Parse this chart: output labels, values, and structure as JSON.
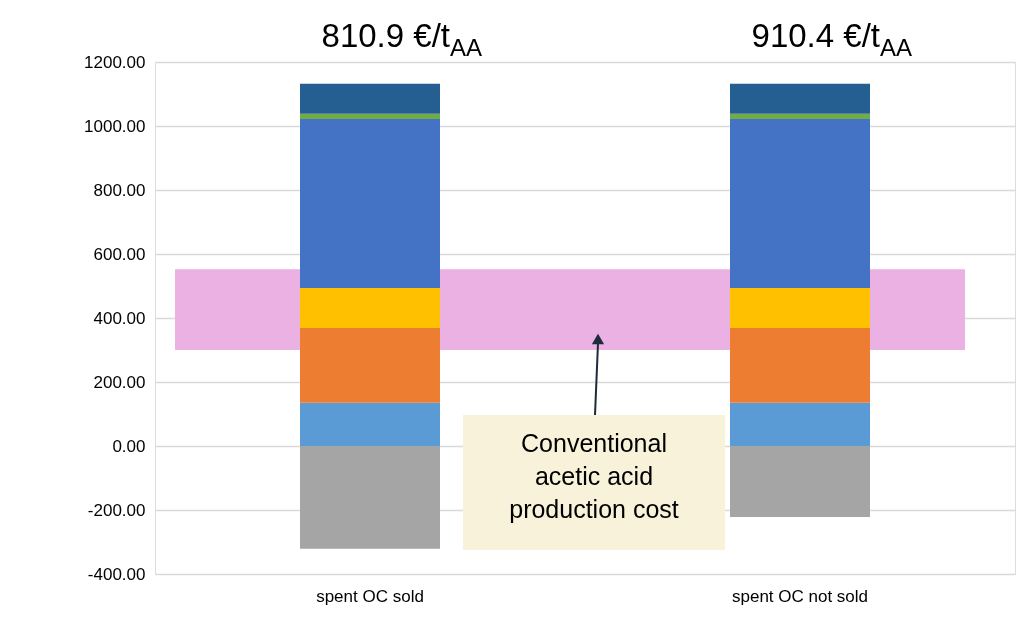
{
  "chart_data": {
    "type": "bar",
    "stacked": true,
    "categories": [
      "spent OC sold",
      "spent OC not sold"
    ],
    "series": [
      {
        "color": "#a5a5a5",
        "values": [
          -321.1,
          -221.6
        ]
      },
      {
        "color": "#5b9bd5",
        "values": [
          135,
          135
        ]
      },
      {
        "color": "#ed7d31",
        "values": [
          234,
          234
        ]
      },
      {
        "color": "#ffc000",
        "values": [
          125,
          125
        ]
      },
      {
        "color": "#4472c4",
        "values": [
          528,
          528
        ]
      },
      {
        "color": "#70ad47",
        "values": [
          16,
          16
        ]
      },
      {
        "color": "#255e91",
        "values": [
          94,
          94
        ]
      }
    ],
    "ylim": [
      -400,
      1200
    ],
    "yticks": [
      {
        "value": -400,
        "label": "-400.00"
      },
      {
        "value": -200,
        "label": "-200.00"
      },
      {
        "value": 0,
        "label": "0.00"
      },
      {
        "value": 200,
        "label": "200.00"
      },
      {
        "value": 400,
        "label": "400.00"
      },
      {
        "value": 600,
        "label": "600.00"
      },
      {
        "value": 800,
        "label": "800.00"
      },
      {
        "value": 1000,
        "label": "1000.00"
      },
      {
        "value": 1200,
        "label": "1200.00"
      }
    ],
    "grid": "y",
    "totals": [
      "810.9 €/t$_{AA}$",
      "910.4 €/t$_{AA}$"
    ],
    "bands": [
      {
        "axis": "y",
        "from": 300,
        "to": 552,
        "label": "Conventional acetic acid production cost",
        "color": "#ebb1e3"
      }
    ]
  }
}
